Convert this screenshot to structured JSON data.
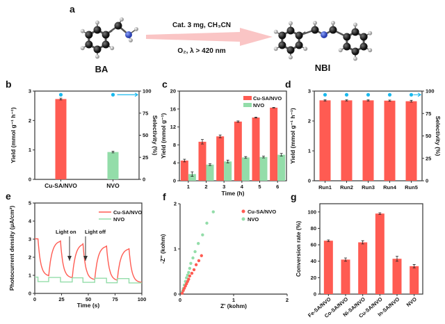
{
  "scheme": {
    "panel_label": "a",
    "reactant": "BA",
    "product": "NBI",
    "condition_top": "Cat. 3 mg,  CH₃CN",
    "condition_bottom": "O₂, λ > 420 nm"
  },
  "colors": {
    "cu": "#ff5b52",
    "nvo": "#93dda9",
    "selectivity": "#19b9ee",
    "arrow": "#f9b6b6"
  },
  "chart_data": [
    {
      "panel": "b",
      "type": "bar",
      "categories": [
        "Cu-SA/NVO",
        "NVO"
      ],
      "values": [
        2.73,
        0.93
      ],
      "errors": [
        0.03,
        0.03
      ],
      "selectivity": [
        99,
        99
      ],
      "ylabel": "Yield (mmol g⁻¹ h⁻¹)",
      "ylim": [
        0,
        3
      ],
      "yticks": [
        "0",
        "1",
        "2",
        "3"
      ],
      "y2label": "Selectivity (%)",
      "y2lim": [
        0,
        100
      ],
      "y2ticks": [
        "0",
        "25",
        "50",
        "75",
        "100"
      ]
    },
    {
      "panel": "c",
      "type": "bar",
      "categories": [
        "1",
        "2",
        "3",
        "4",
        "5",
        "6"
      ],
      "xlabel": "Time (h)",
      "ylabel": "Yield (mmol g⁻¹)",
      "ylim": [
        0,
        20
      ],
      "yticks": [
        "0",
        "4",
        "8",
        "12",
        "16",
        "20"
      ],
      "legend": "top-right",
      "series": [
        {
          "name": "Cu-SA/NVO",
          "values": [
            4.5,
            8.7,
            9.9,
            13.2,
            14.1,
            16.3
          ],
          "errors": [
            0.3,
            0.5,
            0.3,
            0.15,
            0.1,
            0.05
          ]
        },
        {
          "name": "NVO",
          "values": [
            1.5,
            3.6,
            4.3,
            5.2,
            5.3,
            5.8
          ],
          "errors": [
            0.5,
            0.2,
            0.3,
            0.2,
            0.2,
            0.3
          ]
        }
      ]
    },
    {
      "panel": "d",
      "type": "bar",
      "categories": [
        "Run1",
        "Run2",
        "Run3",
        "Run4",
        "Run5"
      ],
      "values": [
        2.69,
        2.69,
        2.69,
        2.68,
        2.66
      ],
      "errors": [
        0.02,
        0.02,
        0.02,
        0.02,
        0.03
      ],
      "selectivity": [
        99,
        99,
        99,
        99,
        99
      ],
      "ylabel": "Yield (mmol g⁻¹ h⁻¹)",
      "ylim": [
        0,
        3
      ],
      "yticks": [
        "0",
        "1",
        "2",
        "3"
      ],
      "y2label": "Selectivity (%)",
      "y2lim": [
        0,
        100
      ],
      "y2ticks": [
        "0",
        "25",
        "50",
        "75",
        "100"
      ]
    },
    {
      "panel": "e",
      "type": "line",
      "xlabel": "Time (s)",
      "ylabel": "Photocurrent density (μA/cm²)",
      "xlim": [
        0,
        100
      ],
      "ylim": [
        0,
        5
      ],
      "xticks": [
        "0",
        "25",
        "50",
        "75",
        "100"
      ],
      "yticks": [
        "0",
        "1",
        "2",
        "3",
        "4",
        "5"
      ],
      "legend": "top-right",
      "annotations": [
        "Light on",
        "Light off"
      ],
      "light_on_times": [
        0,
        13,
        35,
        56,
        77
      ],
      "light_off_times": [
        3,
        24,
        45,
        67,
        88
      ],
      "series": [
        {
          "name": "Cu-SA/NVO",
          "peaks": [
            3.02,
            2.93,
            2.78,
            2.65,
            2.5
          ],
          "troughs": [
            0.95,
            0.85,
            0.75,
            0.7,
            0.6
          ]
        },
        {
          "name": "NVO",
          "peaks": [
            0.9,
            0.88,
            0.86,
            0.84,
            0.82
          ],
          "troughs": [
            0.65,
            0.63,
            0.61,
            0.59,
            0.58
          ]
        }
      ]
    },
    {
      "panel": "f",
      "type": "scatter",
      "xlabel": "Z' (kohm)",
      "ylabel": "-Z'' (kohm)",
      "xlim": [
        0,
        2
      ],
      "ylim": [
        0,
        2
      ],
      "xticks": [
        "0",
        "1",
        "2"
      ],
      "yticks": [
        "0",
        "1",
        "2"
      ],
      "legend": "top-right",
      "series": [
        {
          "name": "Cu-SA/NVO",
          "x": [
            0.04,
            0.06,
            0.08,
            0.1,
            0.12,
            0.14,
            0.16,
            0.18,
            0.22,
            0.26,
            0.3,
            0.35,
            0.4
          ],
          "y": [
            0.02,
            0.08,
            0.13,
            0.18,
            0.23,
            0.28,
            0.33,
            0.4,
            0.46,
            0.54,
            0.65,
            0.74,
            0.85
          ]
        },
        {
          "name": "NVO",
          "x": [
            0.04,
            0.06,
            0.08,
            0.1,
            0.12,
            0.14,
            0.16,
            0.18,
            0.2,
            0.24,
            0.28,
            0.34,
            0.42,
            0.5,
            0.62
          ],
          "y": [
            0.05,
            0.12,
            0.2,
            0.28,
            0.36,
            0.42,
            0.48,
            0.57,
            0.68,
            0.8,
            0.94,
            1.12,
            1.31,
            1.57,
            1.82
          ]
        }
      ]
    },
    {
      "panel": "g",
      "type": "bar",
      "categories": [
        "Fe-SA/NVO",
        "Co-SA/NVO",
        "Ni-SA/NVO",
        "Cu-SA/NVO",
        "In-SA/NVO",
        "NVO"
      ],
      "values": [
        65,
        42,
        63,
        98,
        43,
        34
      ],
      "errors": [
        1,
        2,
        2,
        1,
        3,
        2
      ],
      "ylabel": "Conversion rate (%)",
      "ylim": [
        0,
        110
      ],
      "yticks": [
        "0",
        "20",
        "40",
        "60",
        "80",
        "100"
      ]
    }
  ]
}
